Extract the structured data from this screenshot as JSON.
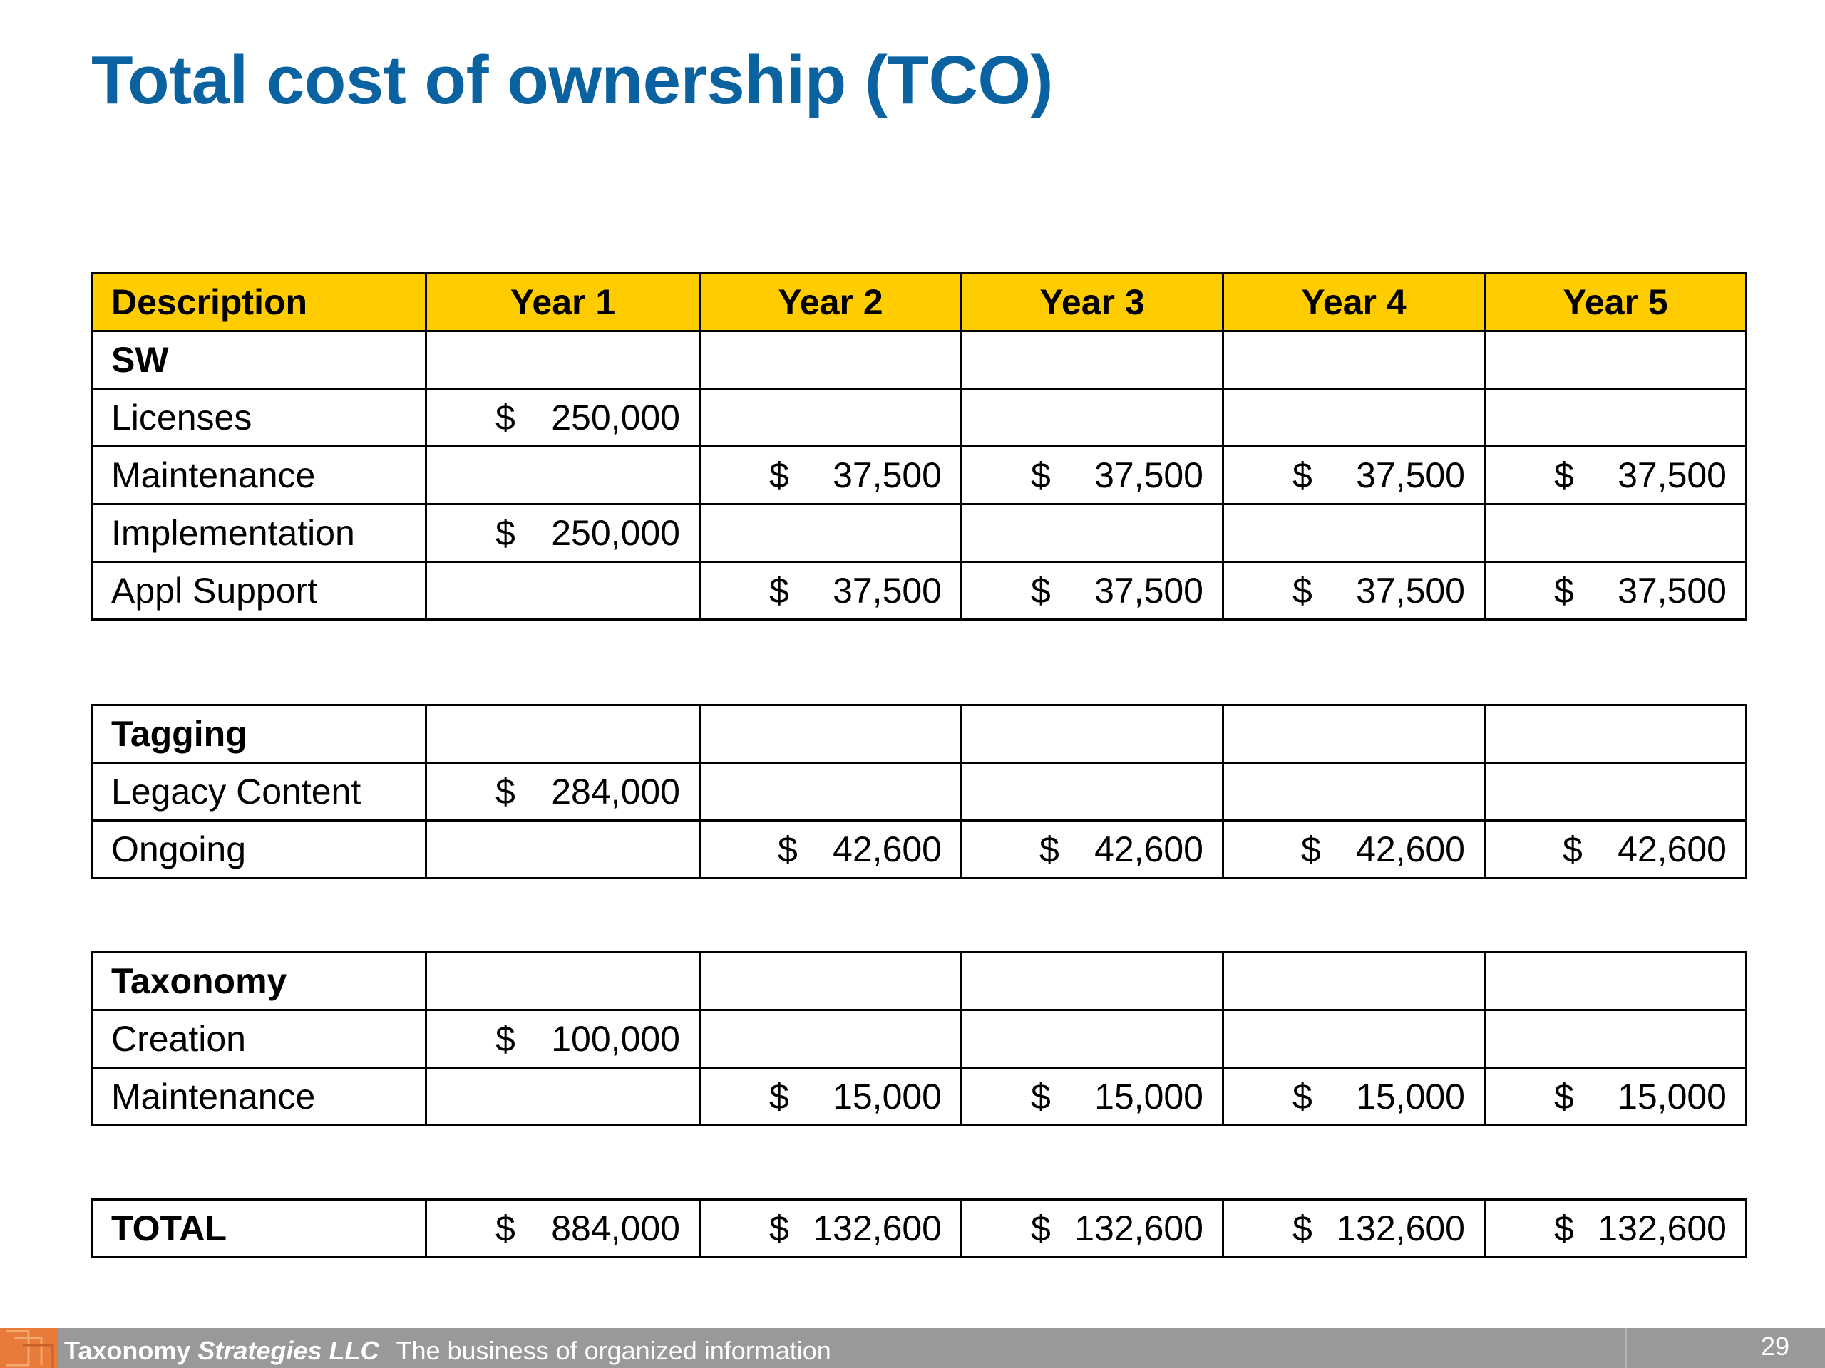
{
  "title": "Total cost of ownership (TCO)",
  "header": {
    "description": "Description",
    "years": [
      "Year 1",
      "Year 2",
      "Year 3",
      "Year 4",
      "Year 5"
    ]
  },
  "sections": {
    "sw": {
      "label": "SW",
      "rows": {
        "licenses": {
          "label": "Licenses",
          "y1": "250,000"
        },
        "maintenance": {
          "label": "Maintenance",
          "y2": "37,500",
          "y3": "37,500",
          "y4": "37,500",
          "y5": "37,500"
        },
        "implementation": {
          "label": "Implementation",
          "y1": "250,000"
        },
        "appl_support": {
          "label": "Appl Support",
          "y2": "37,500",
          "y3": "37,500",
          "y4": "37,500",
          "y5": "37,500"
        }
      }
    },
    "tagging": {
      "label": "Tagging",
      "rows": {
        "legacy_content": {
          "label": "Legacy Content",
          "y1": "284,000"
        },
        "ongoing": {
          "label": "Ongoing",
          "y2": "42,600",
          "y3": "42,600",
          "y4": "42,600",
          "y5": "42,600"
        }
      }
    },
    "taxonomy": {
      "label": "Taxonomy",
      "rows": {
        "creation": {
          "label": "Creation",
          "y1": "100,000"
        },
        "maintenance": {
          "label": "Maintenance",
          "y2": "15,000",
          "y3": "15,000",
          "y4": "15,000",
          "y5": "15,000"
        }
      }
    }
  },
  "total": {
    "label": "TOTAL",
    "y1": "884,000",
    "y2": "132,600",
    "y3": "132,600",
    "y4": "132,600",
    "y5": "132,600"
  },
  "currency_symbol": "$",
  "footer": {
    "company_part1": "Taxonomy",
    "company_part2": "Strategies LLC",
    "tagline": "The business of organized information",
    "page_number": "29"
  },
  "colors": {
    "title": "#0a63a0",
    "header_fill": "#ffcc00",
    "footer_bar": "#999999",
    "logo": "#e87a3a"
  }
}
